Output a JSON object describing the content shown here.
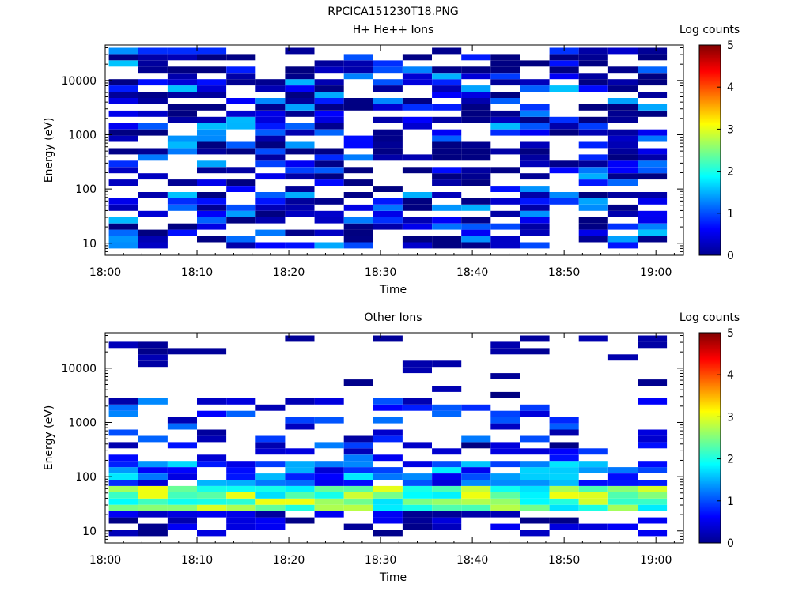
{
  "figure_title": "RPCICA151230T18.PNG",
  "chart_data": [
    {
      "type": "heatmap",
      "title": "H+ He++ Ions",
      "xlabel": "Time",
      "ylabel": "Energy (eV)",
      "x_range": [
        "18:00",
        "19:03"
      ],
      "x_ticks": [
        "18:00",
        "18:10",
        "18:20",
        "18:30",
        "18:40",
        "18:50",
        "19:00"
      ],
      "y_scale": "log",
      "y_range": [
        6,
        45000
      ],
      "y_ticks": [
        "10",
        "100",
        "1000",
        "10000"
      ],
      "colorbar": {
        "label": "Log counts",
        "min": 0,
        "max": 5,
        "ticks": [
          "0",
          "1",
          "2",
          "3",
          "4",
          "5"
        ]
      },
      "time_bins": 19,
      "bin_minutes": 3.2,
      "intensity_summary": "mostly 0-0.7 log counts (dark blue) across 8 eV - 40 keV, occasional 1-1.5 cells",
      "seed": 7
    },
    {
      "type": "heatmap",
      "title": "Other Ions",
      "xlabel": "Time",
      "ylabel": "Energy (eV)",
      "x_range": [
        "18:00",
        "19:03"
      ],
      "x_ticks": [
        "18:00",
        "18:10",
        "18:20",
        "18:30",
        "18:40",
        "18:50",
        "19:00"
      ],
      "y_scale": "log",
      "y_range": [
        6,
        45000
      ],
      "y_ticks": [
        "10",
        "100",
        "1000",
        "10000"
      ],
      "colorbar": {
        "label": "Log counts",
        "min": 0,
        "max": 5,
        "ticks": [
          "0",
          "1",
          "2",
          "3",
          "4",
          "5"
        ]
      },
      "time_bins": 19,
      "bin_minutes": 3.2,
      "intensity_summary": "band 25-60 eV at 1.7-3.1 log counts (cyan to yellow), 60-200 eV at 0.5-1.8, sparse higher energies",
      "seed": 13
    }
  ]
}
